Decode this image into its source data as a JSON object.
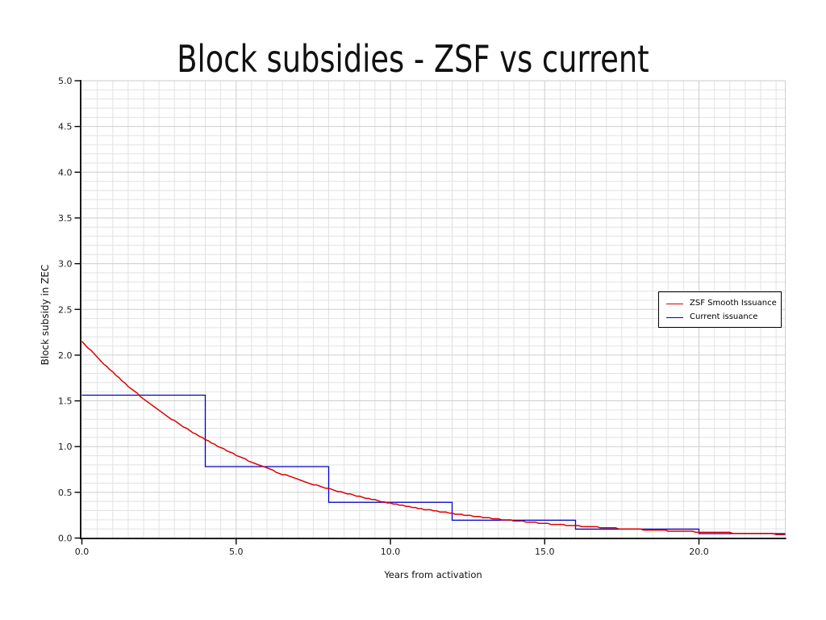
{
  "chart_data": {
    "type": "line",
    "title": "Block subsidies - ZSF vs current",
    "xlabel": "Years from activation",
    "ylabel": "Block subsidy in ZEC",
    "xlim": [
      0,
      22.8
    ],
    "ylim": [
      0,
      5
    ],
    "x_major_ticks": [
      0,
      5,
      10,
      15,
      20
    ],
    "x_tick_labels": [
      "0.0",
      "5.0",
      "10.0",
      "15.0",
      "20.0"
    ],
    "y_major_ticks": [
      0,
      0.5,
      1,
      1.5,
      2,
      2.5,
      3,
      3.5,
      4,
      4.5,
      5
    ],
    "y_tick_labels": [
      "0.0",
      "0.5",
      "1.0",
      "1.5",
      "2.0",
      "2.5",
      "3.0",
      "3.5",
      "4.0",
      "4.5",
      "5.0"
    ],
    "x_minor_step": 0.5,
    "y_minor_step": 0.1,
    "grid": {
      "major": true,
      "minor": true,
      "major_color": "#cdcdcd",
      "minor_color": "#e2e2e2"
    },
    "legend": {
      "position": "center-right",
      "border": true
    },
    "series": [
      {
        "name": "ZSF Smooth Issuance",
        "color": "#dd0000",
        "style": "smooth-exponential",
        "start_value": 2.156,
        "half_life_years": 4,
        "t_end": 22.8,
        "points_yearly": [
          [
            0,
            2.156
          ],
          [
            1,
            1.813
          ],
          [
            2,
            1.524
          ],
          [
            3,
            1.282
          ],
          [
            4,
            1.078
          ],
          [
            5,
            0.907
          ],
          [
            6,
            0.762
          ],
          [
            7,
            0.641
          ],
          [
            8,
            0.539
          ],
          [
            9,
            0.453
          ],
          [
            10,
            0.381
          ],
          [
            11,
            0.32
          ],
          [
            12,
            0.27
          ],
          [
            13,
            0.227
          ],
          [
            14,
            0.191
          ],
          [
            15,
            0.16
          ],
          [
            16,
            0.135
          ],
          [
            17,
            0.113
          ],
          [
            18,
            0.095
          ],
          [
            19,
            0.08
          ],
          [
            20,
            0.067
          ],
          [
            21,
            0.057
          ],
          [
            22,
            0.048
          ],
          [
            22.8,
            0.042
          ]
        ]
      },
      {
        "name": "Current issuance",
        "color": "#0000cc",
        "style": "step",
        "steps": [
          {
            "from": 0,
            "to": 4,
            "value": 1.5625
          },
          {
            "from": 4,
            "to": 8,
            "value": 0.78125
          },
          {
            "from": 8,
            "to": 12,
            "value": 0.390625
          },
          {
            "from": 12,
            "to": 16,
            "value": 0.1953125
          },
          {
            "from": 16,
            "to": 20,
            "value": 0.09765625
          },
          {
            "from": 20,
            "to": 22.8,
            "value": 0.048828125
          }
        ]
      }
    ]
  }
}
